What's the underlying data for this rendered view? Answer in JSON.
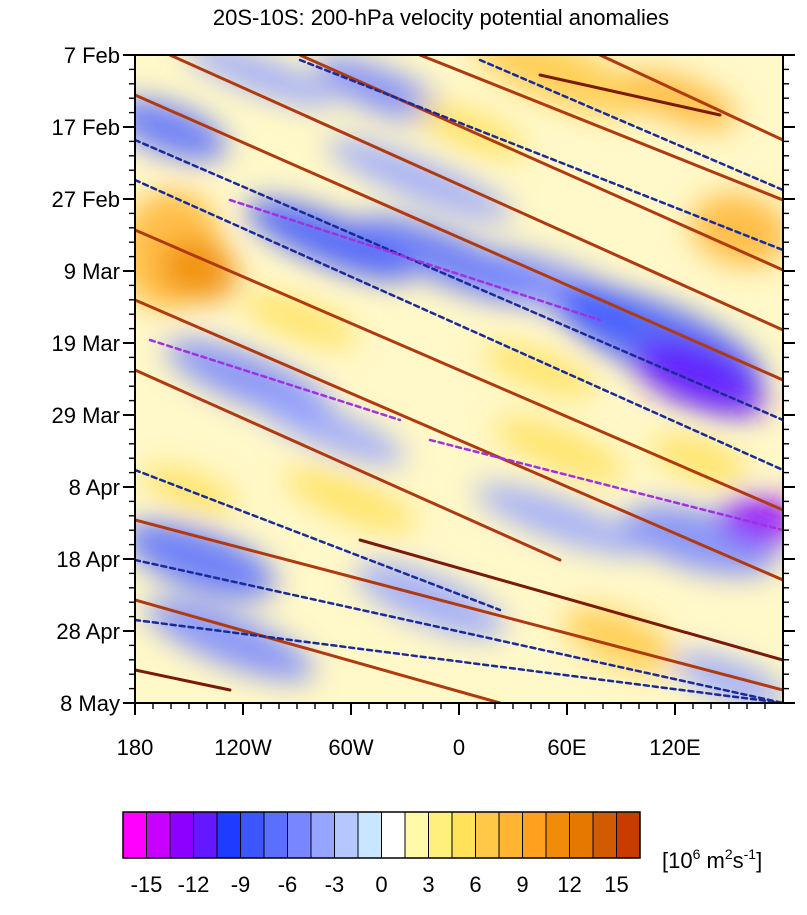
{
  "chart_data": {
    "type": "heatmap",
    "title": "20S-10S: 200-hPa velocity potential anomalies",
    "x_ticks": [
      "180",
      "120W",
      "60W",
      "0",
      "60E",
      "120E"
    ],
    "y_ticks": [
      "7 Feb",
      "17 Feb",
      "27 Feb",
      "9 Mar",
      "19 Mar",
      "29 Mar",
      "8 Apr",
      "18 Apr",
      "28 Apr",
      "8 May"
    ],
    "colorbar": {
      "labels": [
        "-15",
        "-12",
        "-9",
        "-6",
        "-3",
        "0",
        "3",
        "6",
        "9",
        "12",
        "15"
      ],
      "unit_base": "[10",
      "unit_exp1": "6",
      "unit_mid": " m",
      "unit_exp2": "2",
      "unit_s": "s",
      "unit_exp3": "-1",
      "unit_close": "]",
      "colors": [
        "#ff00ff",
        "#c800ff",
        "#8c00ff",
        "#6418ff",
        "#1e3cff",
        "#3c55ff",
        "#5a6eff",
        "#7887ff",
        "#96a5ff",
        "#b4c8ff",
        "#c8e6ff",
        "#ffffff",
        "#fffaaa",
        "#fff07d",
        "#ffe15a",
        "#ffc846",
        "#ffb432",
        "#ffa01e",
        "#f08c0a",
        "#e67800",
        "#d25a00",
        "#c83c00"
      ]
    },
    "colors": {
      "positive_contour": "#b03a10",
      "positive_contour_strong": "#7a1a08",
      "negative_contour": "#1a2a9a",
      "negative_contour_strong": "#a030e0"
    }
  }
}
